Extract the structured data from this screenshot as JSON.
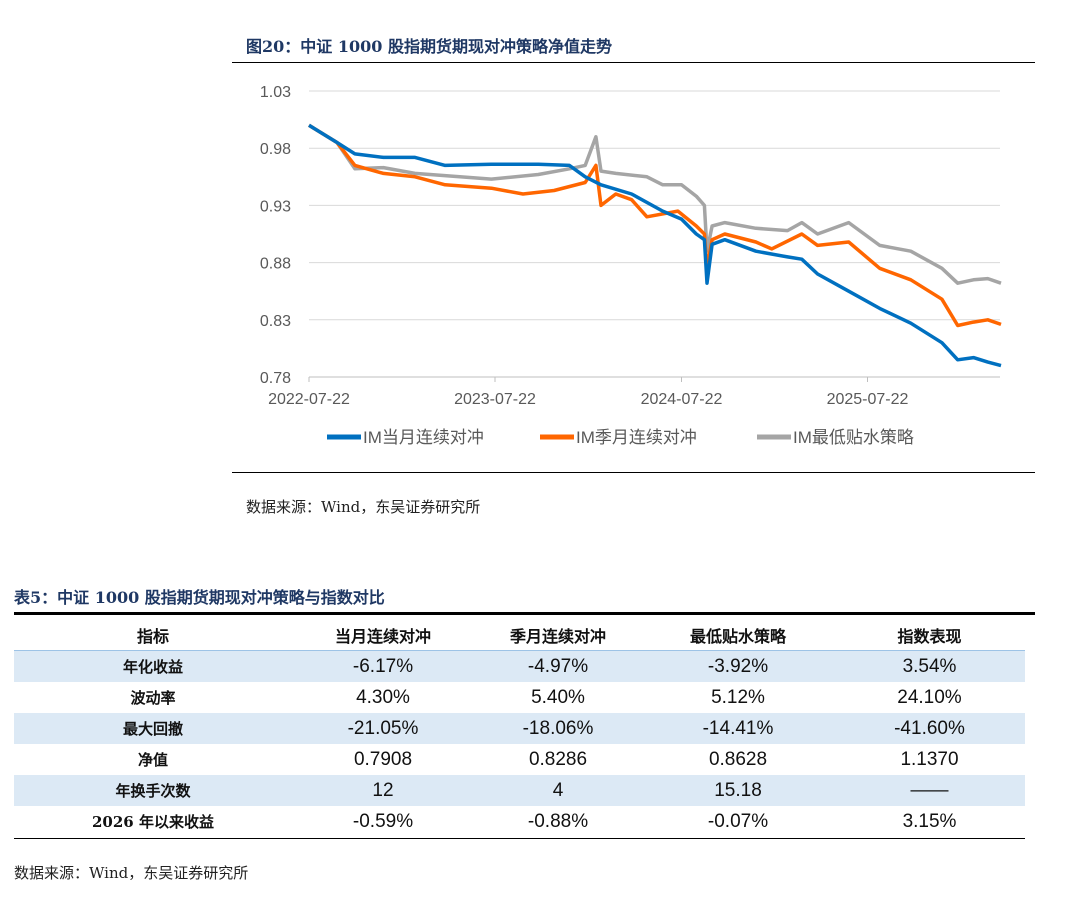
{
  "figure": {
    "title": "图20：中证 1000 股指期货期现对冲策略净值走势",
    "source": "数据来源：Wind，东吴证券研究所"
  },
  "chart_data": {
    "type": "line",
    "title": "",
    "xlabel": "",
    "ylabel": "",
    "ylim": [
      0.78,
      1.03
    ],
    "yticks": [
      "1.03",
      "0.98",
      "0.93",
      "0.88",
      "0.83",
      "0.78"
    ],
    "xticks": [
      "2022-07-22",
      "2023-07-22",
      "2024-07-22",
      "2025-07-22"
    ],
    "xlim": [
      "2022-07-22",
      "2026-04-10"
    ],
    "grid": "horizontal",
    "legend": "bottom",
    "series": [
      {
        "name": "IM当月连续对冲",
        "color": "#0070c0",
        "points": [
          [
            "2022-07-22",
            1.0
          ],
          [
            "2022-09-15",
            0.985
          ],
          [
            "2022-10-20",
            0.975
          ],
          [
            "2022-12-15",
            0.972
          ],
          [
            "2023-02-15",
            0.972
          ],
          [
            "2023-04-15",
            0.965
          ],
          [
            "2023-07-15",
            0.966
          ],
          [
            "2023-10-15",
            0.966
          ],
          [
            "2023-12-15",
            0.965
          ],
          [
            "2024-01-15",
            0.955
          ],
          [
            "2024-02-15",
            0.948
          ],
          [
            "2024-04-15",
            0.94
          ],
          [
            "2024-06-15",
            0.925
          ],
          [
            "2024-07-22",
            0.918
          ],
          [
            "2024-08-20",
            0.905
          ],
          [
            "2024-09-05",
            0.9
          ],
          [
            "2024-09-10",
            0.862
          ],
          [
            "2024-09-20",
            0.896
          ],
          [
            "2024-10-15",
            0.9
          ],
          [
            "2024-12-15",
            0.89
          ],
          [
            "2025-02-15",
            0.885
          ],
          [
            "2025-03-15",
            0.883
          ],
          [
            "2025-04-15",
            0.87
          ],
          [
            "2025-06-15",
            0.855
          ],
          [
            "2025-08-15",
            0.84
          ],
          [
            "2025-10-15",
            0.827
          ],
          [
            "2025-12-15",
            0.81
          ],
          [
            "2026-01-15",
            0.795
          ],
          [
            "2026-02-15",
            0.797
          ],
          [
            "2026-03-15",
            0.793
          ],
          [
            "2026-04-10",
            0.79
          ]
        ]
      },
      {
        "name": "IM季月连续对冲",
        "color": "#ff6600",
        "points": [
          [
            "2022-07-22",
            1.0
          ],
          [
            "2022-09-15",
            0.985
          ],
          [
            "2022-10-20",
            0.965
          ],
          [
            "2022-12-15",
            0.958
          ],
          [
            "2023-02-15",
            0.955
          ],
          [
            "2023-04-15",
            0.948
          ],
          [
            "2023-07-15",
            0.945
          ],
          [
            "2023-09-15",
            0.94
          ],
          [
            "2023-11-15",
            0.943
          ],
          [
            "2024-01-15",
            0.95
          ],
          [
            "2024-02-05",
            0.965
          ],
          [
            "2024-02-15",
            0.93
          ],
          [
            "2024-03-15",
            0.94
          ],
          [
            "2024-04-15",
            0.935
          ],
          [
            "2024-05-15",
            0.92
          ],
          [
            "2024-07-15",
            0.925
          ],
          [
            "2024-08-20",
            0.912
          ],
          [
            "2024-09-05",
            0.905
          ],
          [
            "2024-09-10",
            0.875
          ],
          [
            "2024-09-20",
            0.9
          ],
          [
            "2024-10-15",
            0.905
          ],
          [
            "2024-12-15",
            0.898
          ],
          [
            "2025-01-15",
            0.892
          ],
          [
            "2025-03-15",
            0.905
          ],
          [
            "2025-04-15",
            0.895
          ],
          [
            "2025-06-15",
            0.898
          ],
          [
            "2025-08-15",
            0.875
          ],
          [
            "2025-10-15",
            0.865
          ],
          [
            "2025-12-15",
            0.848
          ],
          [
            "2026-01-15",
            0.825
          ],
          [
            "2026-02-15",
            0.828
          ],
          [
            "2026-03-15",
            0.83
          ],
          [
            "2026-04-10",
            0.826
          ]
        ]
      },
      {
        "name": "IM最低贴水策略",
        "color": "#a5a5a5",
        "points": [
          [
            "2022-07-22",
            1.0
          ],
          [
            "2022-09-15",
            0.985
          ],
          [
            "2022-10-20",
            0.962
          ],
          [
            "2022-12-15",
            0.963
          ],
          [
            "2023-02-15",
            0.958
          ],
          [
            "2023-07-15",
            0.953
          ],
          [
            "2023-10-15",
            0.957
          ],
          [
            "2023-12-15",
            0.962
          ],
          [
            "2024-01-15",
            0.965
          ],
          [
            "2024-02-05",
            0.99
          ],
          [
            "2024-02-15",
            0.96
          ],
          [
            "2024-03-15",
            0.958
          ],
          [
            "2024-05-15",
            0.955
          ],
          [
            "2024-06-15",
            0.948
          ],
          [
            "2024-07-22",
            0.948
          ],
          [
            "2024-08-20",
            0.938
          ],
          [
            "2024-09-05",
            0.93
          ],
          [
            "2024-09-10",
            0.89
          ],
          [
            "2024-09-20",
            0.912
          ],
          [
            "2024-10-15",
            0.915
          ],
          [
            "2024-12-15",
            0.91
          ],
          [
            "2025-02-15",
            0.908
          ],
          [
            "2025-03-15",
            0.915
          ],
          [
            "2025-04-15",
            0.905
          ],
          [
            "2025-06-15",
            0.915
          ],
          [
            "2025-08-15",
            0.895
          ],
          [
            "2025-10-15",
            0.89
          ],
          [
            "2025-12-15",
            0.875
          ],
          [
            "2026-01-15",
            0.862
          ],
          [
            "2026-02-15",
            0.865
          ],
          [
            "2026-03-15",
            0.866
          ],
          [
            "2026-04-10",
            0.862
          ]
        ]
      }
    ]
  },
  "table": {
    "title": "表5：中证 1000 股指期货期现对冲策略与指数对比",
    "headers": [
      "指标",
      "当月连续对冲",
      "季月连续对冲",
      "最低贴水策略",
      "指数表现"
    ],
    "rows": [
      [
        "年化收益",
        "-6.17%",
        "-4.97%",
        "-3.92%",
        "3.54%"
      ],
      [
        "波动率",
        "4.30%",
        "5.40%",
        "5.12%",
        "24.10%"
      ],
      [
        "最大回撤",
        "-21.05%",
        "-18.06%",
        "-14.41%",
        "-41.60%"
      ],
      [
        "净值",
        "0.7908",
        "0.8286",
        "0.8628",
        "1.1370"
      ],
      [
        "年换手次数",
        "12",
        "4",
        "15.18",
        "——"
      ],
      [
        "2026 年以来收益",
        "-0.59%",
        "-0.88%",
        "-0.07%",
        "3.15%"
      ]
    ],
    "source": "数据来源：Wind，东吴证券研究所"
  }
}
